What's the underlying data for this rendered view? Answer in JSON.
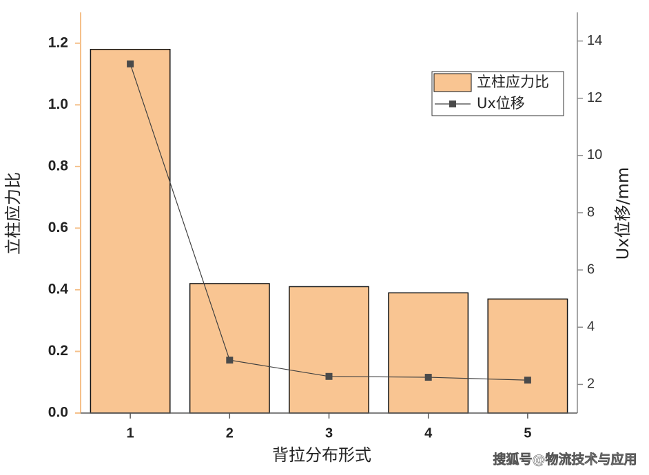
{
  "chart_data": {
    "type": "bar",
    "x_label": "背拉分布形式",
    "y_label": "立柱应力比",
    "y2_label": "Ux位移/mm",
    "categories": [
      "1",
      "2",
      "3",
      "4",
      "5"
    ],
    "series": [
      {
        "name": "立柱应力比",
        "type": "bar",
        "color": "#f9c592",
        "values": [
          1.18,
          0.42,
          0.41,
          0.39,
          0.37
        ]
      },
      {
        "name": "Ux位移",
        "type": "line",
        "axis": "y2",
        "color": "#404040",
        "values": [
          13.2,
          2.85,
          2.28,
          2.25,
          2.15
        ]
      }
    ],
    "ylim": [
      0,
      1.3
    ],
    "yticks": [
      {
        "value": 0,
        "label": "0.0"
      },
      {
        "value": 0.2,
        "label": "0.2"
      },
      {
        "value": 0.4,
        "label": "0.4"
      },
      {
        "value": 0.6,
        "label": "0.6"
      },
      {
        "value": 0.8,
        "label": "0.8"
      },
      {
        "value": 1.0,
        "label": "1.0"
      },
      {
        "value": 1.2,
        "label": "1.2"
      }
    ],
    "y2lim": [
      1,
      15
    ],
    "y2ticks": [
      2,
      4,
      6,
      8,
      10,
      12,
      14
    ],
    "legend": "upper right",
    "annotation": "搜狐号@物流技术与应用"
  }
}
